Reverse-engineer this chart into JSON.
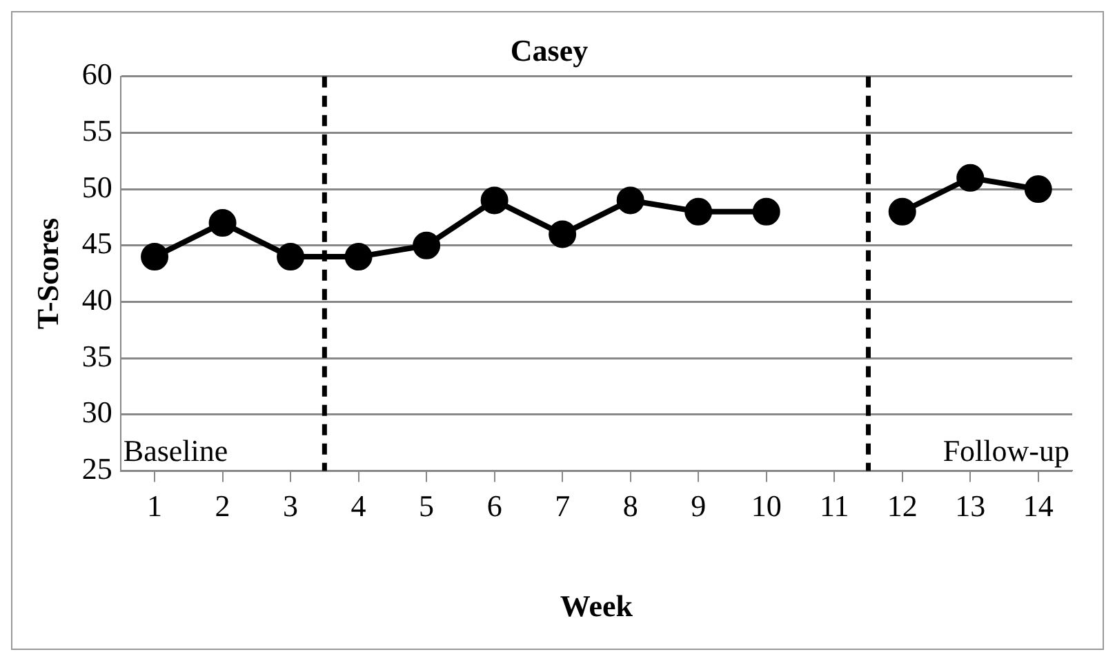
{
  "chart_data": {
    "type": "line",
    "title": "Casey",
    "xlabel": "Week",
    "ylabel": "T-Scores",
    "x": [
      1,
      2,
      3,
      4,
      5,
      6,
      7,
      8,
      9,
      10,
      11,
      12,
      13,
      14
    ],
    "series": [
      {
        "color": "#000000",
        "values": [
          44,
          47,
          44,
          44,
          45,
          49,
          46,
          49,
          48,
          48,
          null,
          48,
          51,
          50
        ]
      }
    ],
    "xlim": [
      0.5,
      14.5
    ],
    "xticks": [
      1,
      2,
      3,
      4,
      5,
      6,
      7,
      8,
      9,
      10,
      11,
      12,
      13,
      14
    ],
    "ylim": [
      25,
      60
    ],
    "yticks": [
      25,
      30,
      35,
      40,
      45,
      50,
      55,
      60
    ],
    "grid": "y",
    "legend": false,
    "marker": "circle",
    "line_style": "solid",
    "ref_lines": [
      {
        "axis": "x",
        "value": 3.5,
        "line_style": "dashed",
        "color": "#000000"
      },
      {
        "axis": "x",
        "value": 11.5,
        "line_style": "dashed",
        "color": "#000000"
      }
    ],
    "annotations": [
      "Baseline",
      "Follow-up"
    ]
  }
}
